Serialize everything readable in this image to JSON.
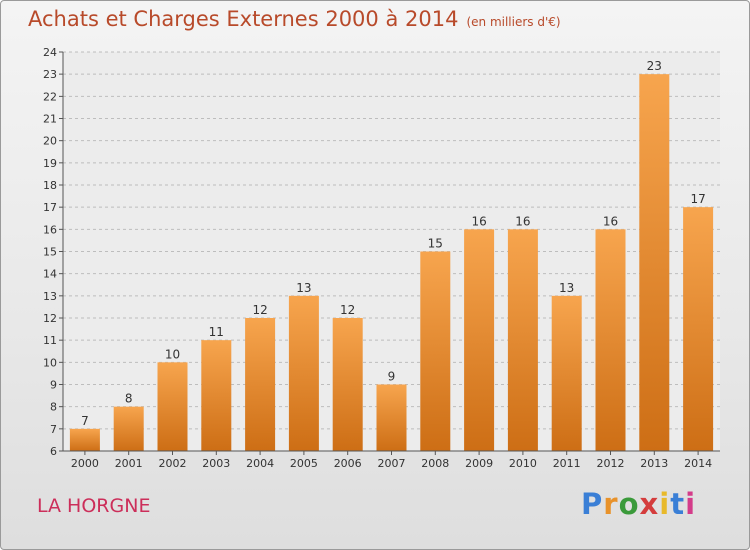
{
  "header": {
    "title": "Achats et Charges Externes 2000 à 2014",
    "subtitle": "(en milliers d'€)"
  },
  "footer": {
    "commune": "LA HORGNE",
    "brand": "Proxiti"
  },
  "colors": {
    "bar_light": "#f7a54e",
    "bar_dark": "#cd6e15",
    "title": "#b84a2a",
    "commune": "#cc2e5a"
  },
  "chart_data": {
    "type": "bar",
    "categories": [
      "2000",
      "2001",
      "2002",
      "2003",
      "2004",
      "2005",
      "2006",
      "2007",
      "2008",
      "2009",
      "2010",
      "2011",
      "2012",
      "2013",
      "2014"
    ],
    "values": [
      7,
      8,
      10,
      11,
      12,
      13,
      12,
      9,
      15,
      16,
      16,
      13,
      16,
      23,
      17
    ],
    "data_labels": [
      "7",
      "8",
      "10",
      "11",
      "12",
      "13",
      "12",
      "9",
      "15",
      "16",
      "16",
      "13",
      "16",
      "23",
      "17"
    ],
    "title": "Achats et Charges Externes 2000 à 2014",
    "subtitle": "(en milliers d'€)",
    "xlabel": "",
    "ylabel": "",
    "ylim": [
      6,
      24
    ],
    "yticks": [
      6,
      7,
      8,
      9,
      10,
      11,
      12,
      13,
      14,
      15,
      16,
      17,
      18,
      19,
      20,
      21,
      22,
      23,
      24
    ],
    "grid": "horizontal dashed",
    "legend": "none"
  }
}
